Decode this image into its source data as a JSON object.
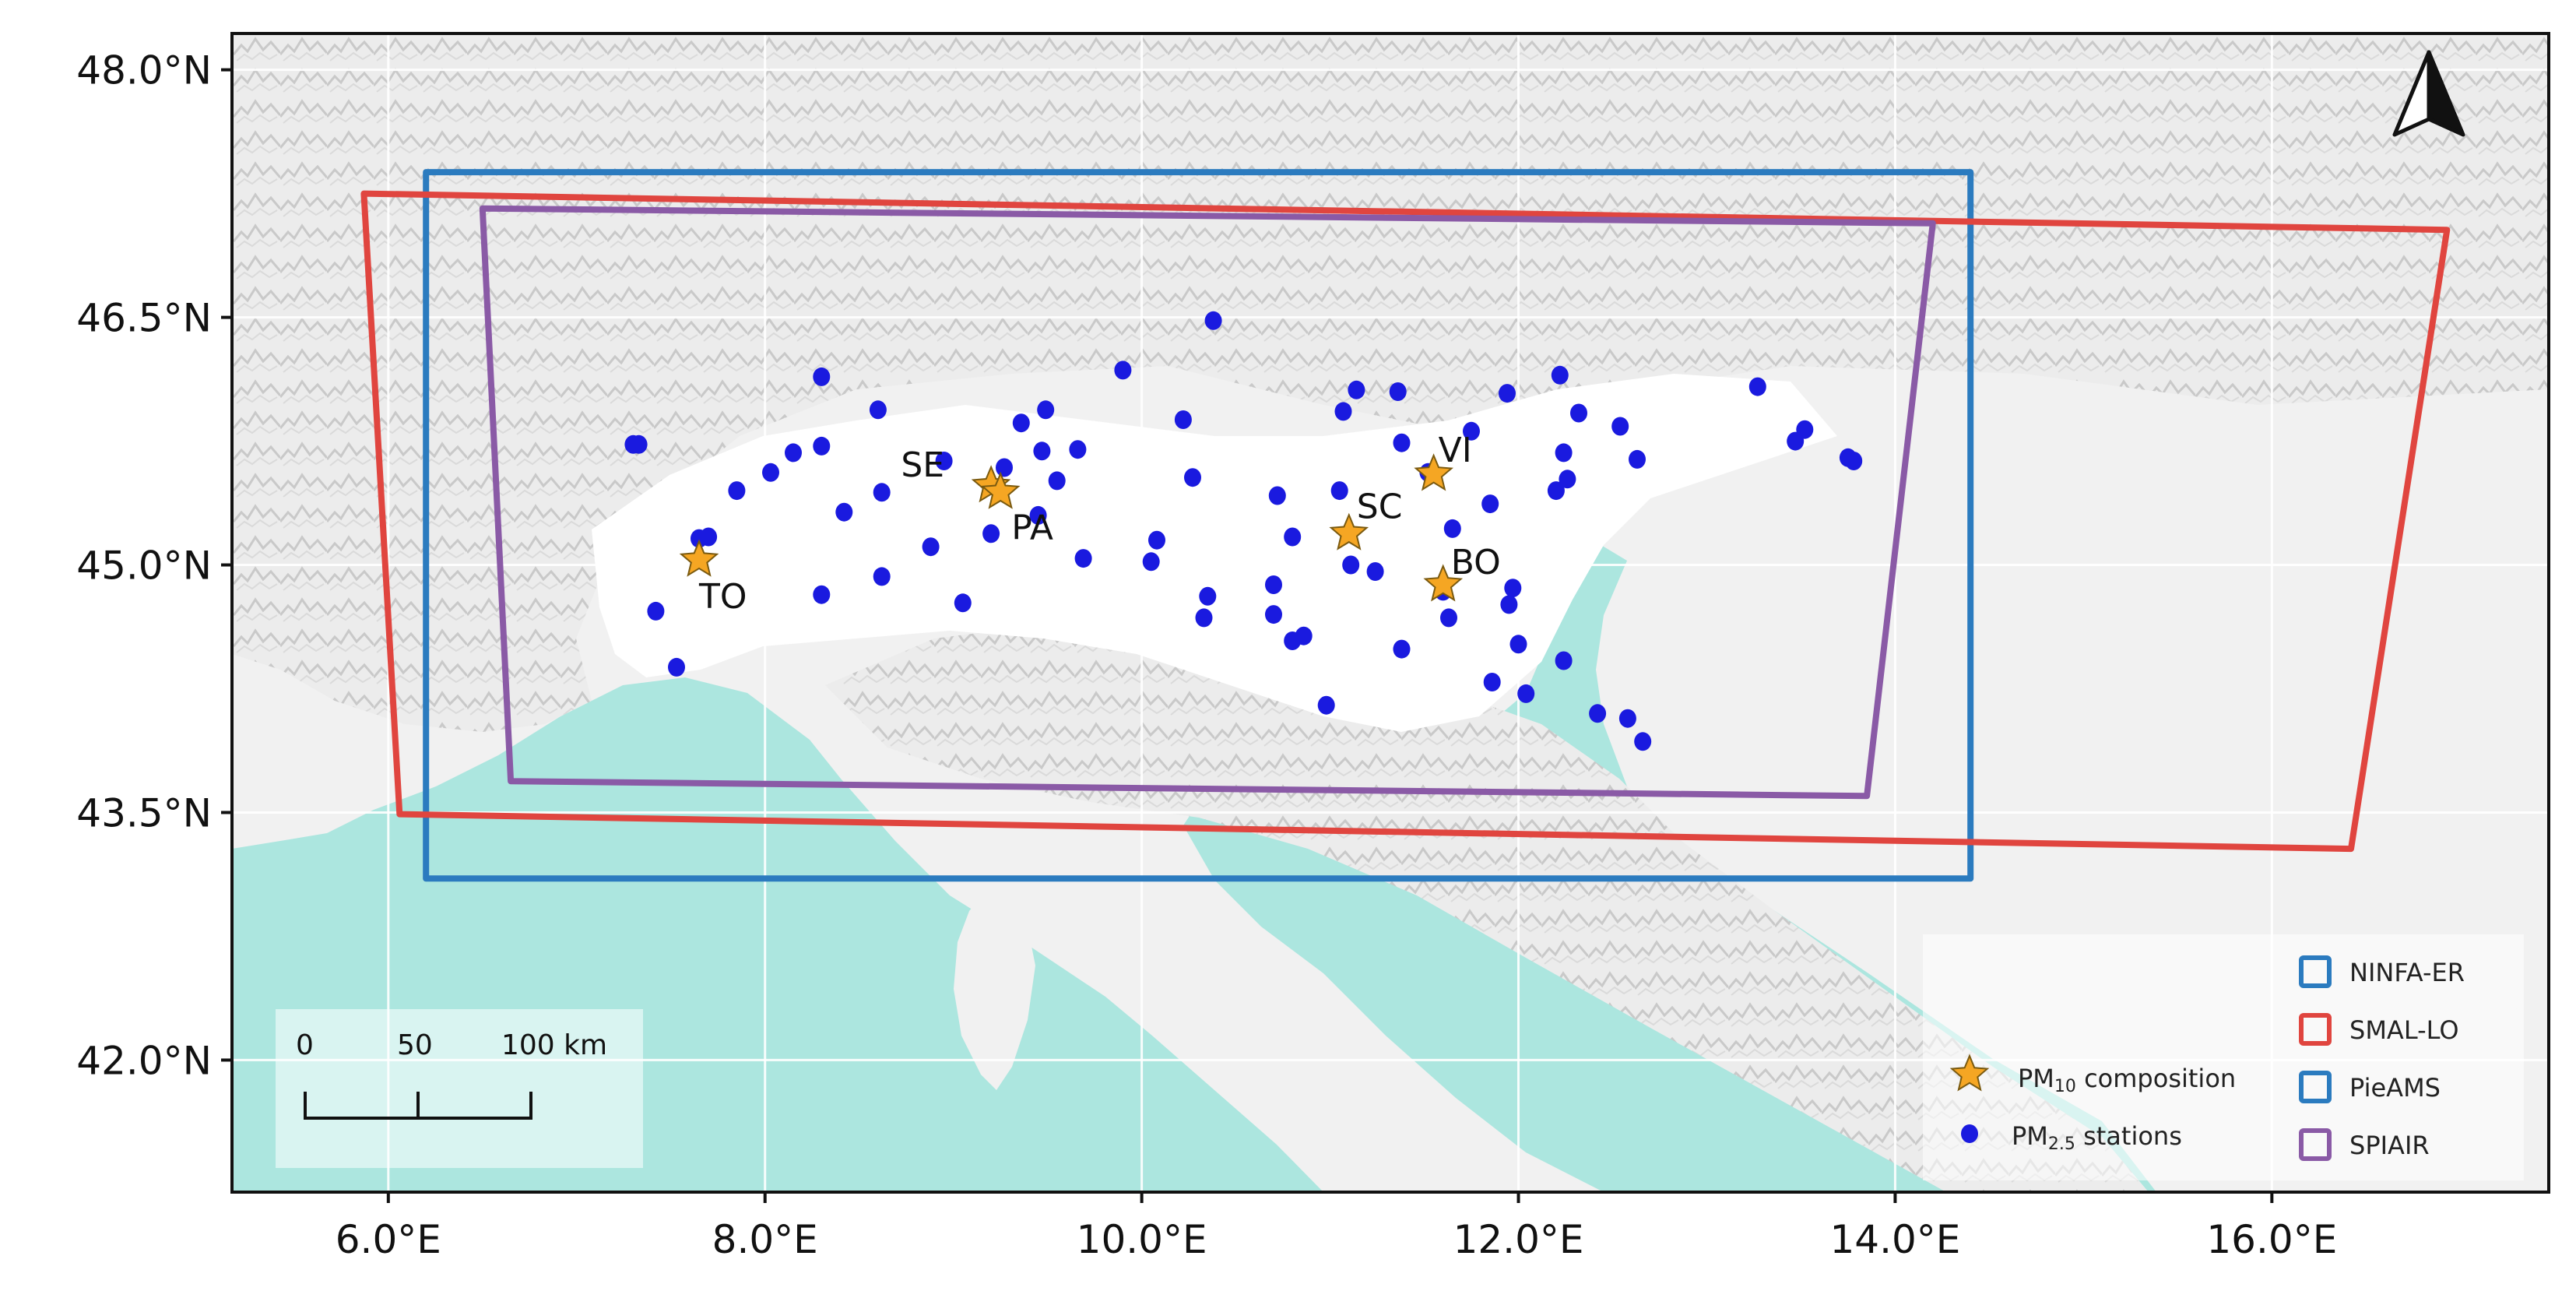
{
  "axes": {
    "lat_ticks": [
      {
        "value": 48.0,
        "label": "48.0°N"
      },
      {
        "value": 46.5,
        "label": "46.5°N"
      },
      {
        "value": 45.0,
        "label": "45.0°N"
      },
      {
        "value": 43.5,
        "label": "43.5°N"
      },
      {
        "value": 42.0,
        "label": "42.0°N"
      }
    ],
    "lon_ticks": [
      {
        "value": 6.0,
        "label": "6.0°E"
      },
      {
        "value": 8.0,
        "label": "8.0°E"
      },
      {
        "value": 10.0,
        "label": "10.0°E"
      },
      {
        "value": 12.0,
        "label": "12.0°E"
      },
      {
        "value": 14.0,
        "label": "14.0°E"
      },
      {
        "value": 16.0,
        "label": "16.0°E"
      }
    ],
    "lon_range": [
      5.17,
      17.47
    ],
    "lat_range": [
      41.2,
      48.22
    ]
  },
  "domains": [
    {
      "name": "NINFA-ER",
      "color": "#2b7bbf",
      "corners": [
        [
          6.2,
          47.38
        ],
        [
          14.4,
          47.38
        ],
        [
          14.4,
          43.1
        ],
        [
          6.2,
          43.1
        ]
      ]
    },
    {
      "name": "SMAL-LO",
      "color": "#e0453f",
      "corners": [
        [
          5.87,
          47.25
        ],
        [
          16.93,
          47.03
        ],
        [
          16.42,
          43.28
        ],
        [
          6.06,
          43.49
        ]
      ]
    },
    {
      "name": "PieAMS",
      "color": "#2b7bbf",
      "corners": []
    },
    {
      "name": "SPIAIR",
      "color": "#8a5aa6",
      "corners": [
        [
          6.5,
          47.16
        ],
        [
          14.2,
          47.07
        ],
        [
          13.85,
          43.6
        ],
        [
          6.65,
          43.69
        ]
      ]
    }
  ],
  "composition_sites": [
    {
      "label": "TO",
      "lon": 7.65,
      "lat": 45.03
    },
    {
      "label": "SE",
      "lon": 9.2,
      "lat": 45.48
    },
    {
      "label": "PA",
      "lon": 9.25,
      "lat": 45.44
    },
    {
      "label": "SC",
      "lon": 11.1,
      "lat": 45.19
    },
    {
      "label": "VI",
      "lon": 11.55,
      "lat": 45.55
    },
    {
      "label": "BO",
      "lon": 11.6,
      "lat": 44.88
    }
  ],
  "pm25_stations": [
    [
      7.3,
      45.73
    ],
    [
      7.33,
      45.73
    ],
    [
      7.42,
      44.72
    ],
    [
      7.53,
      44.38
    ],
    [
      7.65,
      45.16
    ],
    [
      7.7,
      45.17
    ],
    [
      7.85,
      45.45
    ],
    [
      8.03,
      45.56
    ],
    [
      8.15,
      45.68
    ],
    [
      8.3,
      45.72
    ],
    [
      8.3,
      46.14
    ],
    [
      8.3,
      44.82
    ],
    [
      8.42,
      45.32
    ],
    [
      8.6,
      45.94
    ],
    [
      8.62,
      45.44
    ],
    [
      8.62,
      44.93
    ],
    [
      8.88,
      45.11
    ],
    [
      8.95,
      45.63
    ],
    [
      9.05,
      44.77
    ],
    [
      9.2,
      45.19
    ],
    [
      9.27,
      45.59
    ],
    [
      9.36,
      45.86
    ],
    [
      9.45,
      45.3
    ],
    [
      9.47,
      45.69
    ],
    [
      9.49,
      45.94
    ],
    [
      9.55,
      45.51
    ],
    [
      9.66,
      45.7
    ],
    [
      9.69,
      45.04
    ],
    [
      9.9,
      46.18
    ],
    [
      10.05,
      45.02
    ],
    [
      10.08,
      45.15
    ],
    [
      10.22,
      45.88
    ],
    [
      10.27,
      45.53
    ],
    [
      10.38,
      46.48
    ],
    [
      10.35,
      44.81
    ],
    [
      10.33,
      44.68
    ],
    [
      10.72,
      45.42
    ],
    [
      10.7,
      44.88
    ],
    [
      10.7,
      44.7
    ],
    [
      10.8,
      45.17
    ],
    [
      10.8,
      44.54
    ],
    [
      10.86,
      44.57
    ],
    [
      10.98,
      44.15
    ],
    [
      11.05,
      45.45
    ],
    [
      11.07,
      45.93
    ],
    [
      11.11,
      45.0
    ],
    [
      11.14,
      46.06
    ],
    [
      11.24,
      44.96
    ],
    [
      11.36,
      46.05
    ],
    [
      11.38,
      45.74
    ],
    [
      11.38,
      44.49
    ],
    [
      11.52,
      45.56
    ],
    [
      11.6,
      44.84
    ],
    [
      11.63,
      44.68
    ],
    [
      11.65,
      45.22
    ],
    [
      11.75,
      45.81
    ],
    [
      11.85,
      45.37
    ],
    [
      11.86,
      44.29
    ],
    [
      11.94,
      46.04
    ],
    [
      11.95,
      44.76
    ],
    [
      11.97,
      44.86
    ],
    [
      12.0,
      44.52
    ],
    [
      12.04,
      44.22
    ],
    [
      12.2,
      45.45
    ],
    [
      12.22,
      46.15
    ],
    [
      12.24,
      45.68
    ],
    [
      12.26,
      45.52
    ],
    [
      12.24,
      44.42
    ],
    [
      12.32,
      45.92
    ],
    [
      12.42,
      44.1
    ],
    [
      12.54,
      45.84
    ],
    [
      12.58,
      44.07
    ],
    [
      12.63,
      45.64
    ],
    [
      12.66,
      43.93
    ],
    [
      13.27,
      46.08
    ],
    [
      13.47,
      45.75
    ],
    [
      13.52,
      45.82
    ],
    [
      13.75,
      45.65
    ],
    [
      13.78,
      45.63
    ]
  ],
  "legend": {
    "items": [
      {
        "label": "NINFA-ER",
        "color": "#2b7bbf"
      },
      {
        "label": "SMAL-LO",
        "color": "#e0453f"
      },
      {
        "label": "PieAMS",
        "color": "#2b7bbf"
      },
      {
        "label": "SPIAIR",
        "color": "#8a5aa6"
      }
    ],
    "pm10_prefix": "PM",
    "pm10_sub": "10",
    "pm10_suffix": " composition",
    "pm25_prefix": "PM",
    "pm25_sub": "2.5",
    "pm25_suffix": " stations"
  },
  "scale_bar": {
    "labels": [
      "0",
      "50",
      "100 km"
    ]
  },
  "colors": {
    "sea": "#ace6df",
    "land": "#f1f1f1",
    "relief": "#d2d2d2",
    "plain": "#ffffff",
    "station": "#1a1adf",
    "star": "#f5a623",
    "star_stroke": "#7a5a10",
    "grid": "#ffffff"
  },
  "north_arrow_icon": "north-arrow-icon"
}
